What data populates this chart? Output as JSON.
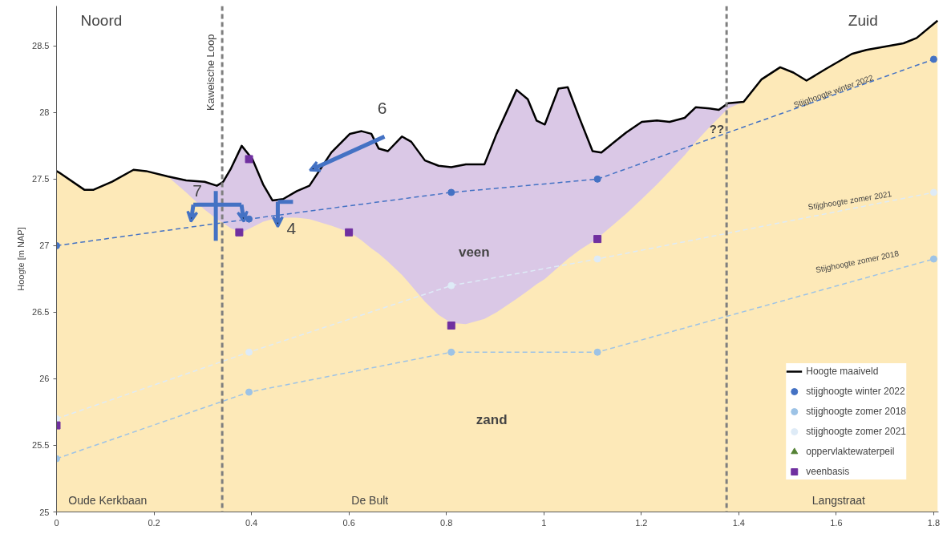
{
  "chart_data": {
    "type": "line",
    "ylabel": "Hoogte [m NAP]",
    "xlim": [
      0,
      1.81
    ],
    "ylim": [
      25,
      28.8
    ],
    "xticks": [
      0,
      0.2,
      0.4,
      0.6,
      0.8,
      1,
      1.2,
      1.4,
      1.6,
      1.8
    ],
    "yticks": [
      25,
      25.5,
      26,
      26.5,
      27,
      27.5,
      28,
      28.5
    ],
    "legend": "bottom right",
    "series": [
      {
        "type": "area",
        "color": "#fde9b8",
        "x": [
          0,
          0.005,
          0.057,
          0.076,
          0.095,
          0.114,
          0.158,
          0.184,
          0.228,
          0.266,
          0.304,
          0.329,
          0.342,
          0.358,
          0.38,
          0.402,
          0.424,
          0.443,
          0.465,
          0.493,
          0.519,
          0.564,
          0.602,
          0.626,
          0.646,
          0.661,
          0.68,
          0.709,
          0.728,
          0.756,
          0.784,
          0.81,
          0.84,
          0.878,
          0.903,
          0.944,
          0.967,
          0.985,
          1.002,
          1.03,
          1.049,
          1.074,
          1.1,
          1.118,
          1.169,
          1.201,
          1.232,
          1.258,
          1.289,
          1.312,
          1.34,
          1.359,
          1.378,
          1.41,
          1.447,
          1.485,
          1.512,
          1.539,
          1.58,
          1.632,
          1.662,
          1.738,
          1.765,
          1.808
        ],
        "values": [
          27.56,
          27.55,
          27.42,
          27.42,
          27.45,
          27.48,
          27.57,
          27.56,
          27.52,
          27.4,
          27.27,
          27.2,
          27.17,
          27.13,
          27.1,
          27.14,
          27.18,
          27.2,
          27.21,
          27.21,
          27.2,
          27.15,
          27.1,
          27.04,
          26.98,
          26.94,
          26.88,
          26.78,
          26.7,
          26.58,
          26.48,
          26.42,
          26.41,
          26.45,
          26.5,
          26.6,
          26.66,
          26.71,
          26.75,
          26.84,
          26.9,
          26.97,
          27.03,
          27.08,
          27.24,
          27.35,
          27.46,
          27.56,
          27.68,
          27.78,
          27.89,
          27.96,
          28.03,
          28.08,
          28.25,
          28.34,
          28.3,
          28.24,
          28.33,
          28.44,
          28.47,
          28.52,
          28.56,
          28.69
        ]
      },
      {
        "type": "area",
        "color": "#dac8e6",
        "x": [
          0.228,
          0.266,
          0.304,
          0.329,
          0.342,
          0.358,
          0.38,
          0.402,
          0.424,
          0.443,
          0.465,
          0.493,
          0.519,
          0.564,
          0.602,
          0.626,
          0.646,
          0.661,
          0.68,
          0.709,
          0.728,
          0.756,
          0.784,
          0.81,
          0.84,
          0.878,
          0.903,
          0.944,
          0.967,
          0.985,
          1.002,
          1.03,
          1.049,
          1.074,
          1.1,
          1.118,
          1.169,
          1.201,
          1.232,
          1.258,
          1.289,
          1.312,
          1.34,
          1.359,
          1.378,
          1.41
        ],
        "values": [
          27.52,
          27.49,
          27.48,
          27.45,
          27.48,
          27.58,
          27.75,
          27.65,
          27.46,
          27.34,
          27.35,
          27.41,
          27.45,
          27.7,
          27.84,
          27.86,
          27.84,
          27.73,
          27.71,
          27.82,
          27.78,
          27.64,
          27.6,
          27.59,
          27.61,
          27.61,
          27.84,
          28.17,
          28.1,
          27.94,
          27.91,
          28.18,
          28.19,
          27.95,
          27.71,
          27.7,
          27.85,
          27.93,
          27.94,
          27.93,
          27.96,
          28.04,
          28.03,
          28.02,
          28.07,
          28.08
        ]
      },
      {
        "name": "Hoogte maaiveld",
        "color": "#000000",
        "marker": "none",
        "line_style": "solid",
        "x": [
          0,
          0.005,
          0.057,
          0.076,
          0.095,
          0.114,
          0.158,
          0.184,
          0.228,
          0.266,
          0.304,
          0.329,
          0.342,
          0.358,
          0.38,
          0.402,
          0.424,
          0.443,
          0.465,
          0.493,
          0.519,
          0.564,
          0.602,
          0.626,
          0.646,
          0.661,
          0.68,
          0.709,
          0.728,
          0.756,
          0.784,
          0.81,
          0.84,
          0.878,
          0.903,
          0.944,
          0.967,
          0.985,
          1.002,
          1.03,
          1.049,
          1.074,
          1.1,
          1.118,
          1.169,
          1.201,
          1.232,
          1.258,
          1.289,
          1.312,
          1.34,
          1.359,
          1.378,
          1.41,
          1.447,
          1.485,
          1.512,
          1.539,
          1.58,
          1.632,
          1.662,
          1.738,
          1.765,
          1.808
        ],
        "values": [
          27.56,
          27.55,
          27.42,
          27.42,
          27.45,
          27.48,
          27.57,
          27.56,
          27.52,
          27.49,
          27.48,
          27.45,
          27.48,
          27.58,
          27.75,
          27.65,
          27.46,
          27.34,
          27.35,
          27.41,
          27.45,
          27.7,
          27.84,
          27.86,
          27.84,
          27.73,
          27.71,
          27.82,
          27.78,
          27.64,
          27.6,
          27.59,
          27.61,
          27.61,
          27.84,
          28.17,
          28.1,
          27.94,
          27.91,
          28.18,
          28.19,
          27.95,
          27.71,
          27.7,
          27.85,
          27.93,
          27.94,
          27.93,
          27.96,
          28.04,
          28.03,
          28.02,
          28.07,
          28.08,
          28.25,
          28.34,
          28.3,
          28.24,
          28.33,
          28.44,
          28.47,
          28.52,
          28.56,
          28.69
        ]
      },
      {
        "name": "stijghoogte winter 2022",
        "color": "#4472c4",
        "marker": "circle",
        "line_style": "dashed",
        "x": [
          0,
          0.395,
          0.81,
          1.11,
          1.8
        ],
        "values": [
          27.0,
          27.2,
          27.4,
          27.5,
          28.4
        ]
      },
      {
        "name": "stijghoogte zomer 2018",
        "color": "#9dc3e6",
        "marker": "circle",
        "line_style": "dashed",
        "x": [
          0,
          0.395,
          0.81,
          1.11,
          1.8
        ],
        "values": [
          25.4,
          25.9,
          26.2,
          26.2,
          26.9
        ]
      },
      {
        "name": "stijghoogte zomer 2021",
        "color": "#deebf7",
        "marker": "circle",
        "line_style": "dashed",
        "x": [
          0,
          0.395,
          0.81,
          1.11,
          1.8
        ],
        "values": [
          25.7,
          26.2,
          26.7,
          26.9,
          27.4
        ]
      },
      {
        "type": "scatter",
        "name": "oppervlaktewaterpeil",
        "color": "#548235",
        "marker": "triangle"
      },
      {
        "type": "scatter",
        "name": "veenbasis",
        "color": "#7030a0",
        "marker": "square",
        "x": [
          0,
          0.375,
          0.395,
          0.6,
          0.81,
          1.11
        ],
        "values": [
          25.65,
          27.1,
          27.65,
          27.1,
          26.4,
          27.05
        ]
      }
    ],
    "ref_lines": [
      {
        "axis": "x",
        "value": 0.34,
        "label": "Kaweische Loop",
        "color": "#7f7f7f",
        "line_style": "dashed"
      },
      {
        "axis": "x",
        "value": 1.375,
        "label": null,
        "color": "#7f7f7f",
        "line_style": "dashed"
      }
    ],
    "annotations": [
      "Noord",
      "Zuid",
      "Oude Kerkbaan",
      "De Bult",
      "Langstraat",
      "veen",
      "zand",
      "??",
      "6",
      "7",
      "4",
      {
        "text": "Stijghoogte winter 2022",
        "x": 1.594,
        "y": 28.16
      },
      "Stijghoogte zomer 2021",
      "Stijghoogte zomer 2018"
    ]
  }
}
